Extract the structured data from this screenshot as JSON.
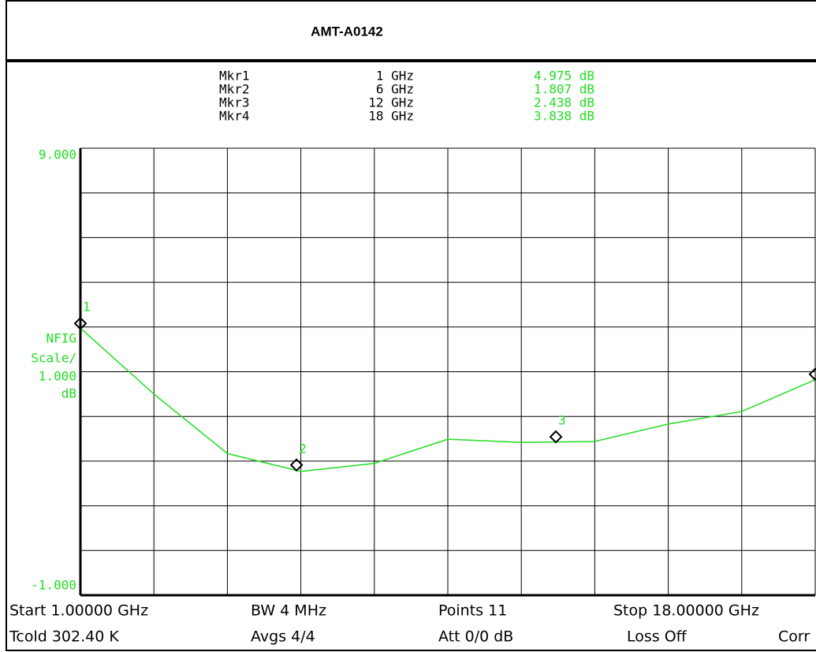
{
  "chart_data": {
    "type": "line",
    "title": "AMT-A0142",
    "y_label": [
      "NFIG",
      "Scale/",
      "1.000",
      "dB"
    ],
    "xlim": [
      1,
      18
    ],
    "ylim": [
      -1,
      9
    ],
    "yticks": [
      {
        "value": -1,
        "label": "-1.000"
      },
      {
        "value": 9,
        "label": "9.000"
      }
    ],
    "xgrid": [
      1,
      2.7,
      4.4,
      6.1,
      7.8,
      9.5,
      11.2,
      12.9,
      14.6,
      16.3,
      18
    ],
    "ygrid": [
      -1,
      0,
      1,
      2,
      3,
      4,
      5,
      6,
      7,
      8,
      9
    ],
    "grid": true,
    "label_color": "#22dd22",
    "series": [
      {
        "color": "#22dd22",
        "x": [
          1,
          2.7,
          4.4,
          6.1,
          7.8,
          9.5,
          11.2,
          12.9,
          14.6,
          16.3,
          18
        ],
        "values": [
          4.975,
          3.5,
          2.17,
          1.77,
          1.95,
          2.49,
          2.42,
          2.44,
          2.83,
          3.11,
          3.82
        ]
      }
    ],
    "markers": {
      "names": [
        "Mkr1",
        "Mkr2",
        "Mkr3",
        "Mkr4"
      ],
      "ids": [
        "1",
        "2",
        "3",
        "4"
      ],
      "x": [
        1,
        6,
        12,
        18
      ],
      "x_labels": [
        "1 GHz",
        "6 GHz",
        "12 GHz",
        "18 GHz"
      ],
      "values": [
        4.975,
        1.807,
        2.438,
        3.838
      ],
      "value_labels": [
        "4.975 dB",
        "1.807 dB",
        "2.438 dB",
        "3.838 dB"
      ]
    },
    "footer": [
      "Start 1.00000 GHz",
      "BW 4 MHz",
      "Points 11",
      "Stop 18.00000 GHz",
      "Tcold 302.40 K",
      "Avgs 4/4",
      "Att 0/0 dB",
      "Loss Off",
      "Corr"
    ]
  }
}
